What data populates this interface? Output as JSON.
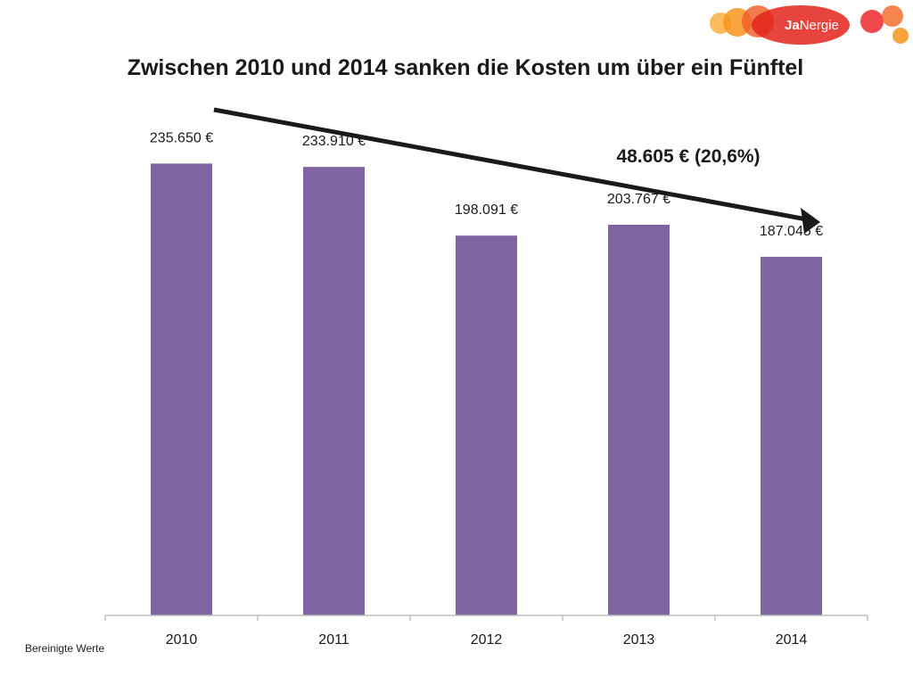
{
  "slide": {
    "title": "Zwischen 2010 und 2014 sanken die Kosten um über ein Fünftel",
    "footnote": "Bereinigte Werte"
  },
  "logo": {
    "text_prefix": "Ja",
    "text_suffix": "Nergie",
    "colors": [
      "#f7941d",
      "#f15a24",
      "#ed1c24",
      "#f26522",
      "#e2231a"
    ]
  },
  "annotation": {
    "label": "48.605 € (20,6%)"
  },
  "colors": {
    "bar": "#8064a2",
    "axis": "#bfbfbf",
    "arrow": "#1a1a1a"
  },
  "chart_data": {
    "type": "bar",
    "categories": [
      "2010",
      "2011",
      "2012",
      "2013",
      "2014"
    ],
    "values": [
      235650,
      233910,
      198091,
      203767,
      187045
    ],
    "value_labels": [
      "235.650 €",
      "233.910 €",
      "198.091 €",
      "203.767 €",
      "187.045 €"
    ],
    "title": "Zwischen 2010 und 2014 sanken die Kosten um über ein Fünftel",
    "xlabel": "",
    "ylabel": "",
    "ylim": [
      0,
      300000
    ],
    "grid": false,
    "legend": "none"
  }
}
